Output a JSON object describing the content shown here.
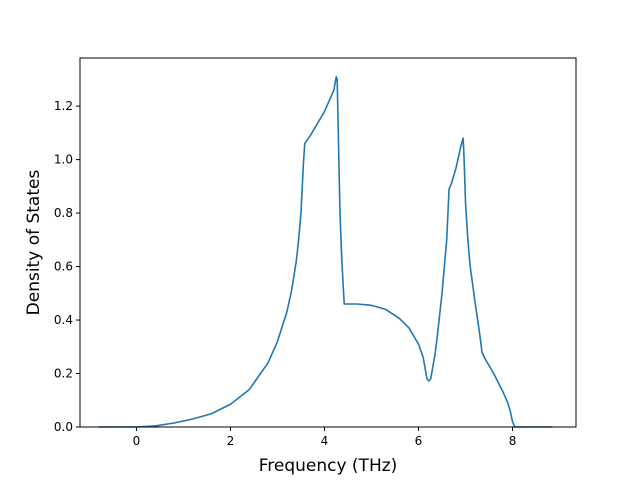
{
  "chart_data": {
    "type": "line",
    "title": "",
    "xlabel": "Frequency (THz)",
    "ylabel": "Density of States",
    "xlim": [
      -1.2,
      9.35
    ],
    "ylim": [
      0,
      1.38
    ],
    "xticks": [
      0,
      2,
      4,
      6,
      8
    ],
    "xtick_labels": [
      "0",
      "2",
      "4",
      "6",
      "8"
    ],
    "yticks": [
      0.0,
      0.2,
      0.4,
      0.6,
      0.8,
      1.0,
      1.2
    ],
    "ytick_labels": [
      "0.0",
      "0.2",
      "0.4",
      "0.6",
      "0.8",
      "1.0",
      "1.2"
    ],
    "grid": false,
    "legend": false,
    "series": [
      {
        "color": "#1f77b4",
        "x": [
          -0.8,
          -0.4,
          0.0,
          0.4,
          0.8,
          1.2,
          1.6,
          2.0,
          2.4,
          2.8,
          3.0,
          3.2,
          3.3,
          3.4,
          3.45,
          3.5,
          3.55,
          3.58,
          3.62,
          3.7,
          3.8,
          3.9,
          4.0,
          4.1,
          4.2,
          4.25,
          4.27,
          4.3,
          4.33,
          4.37,
          4.42,
          4.5,
          4.7,
          5.0,
          5.3,
          5.6,
          5.8,
          6.0,
          6.1,
          6.15,
          6.18,
          6.22,
          6.26,
          6.3,
          6.35,
          6.4,
          6.5,
          6.6,
          6.65,
          6.7,
          6.75,
          6.8,
          6.85,
          6.9,
          6.95,
          6.97,
          7.0,
          7.05,
          7.1,
          7.2,
          7.3,
          7.35,
          7.4,
          7.6,
          7.8,
          7.9,
          7.95,
          8.0,
          8.05,
          8.1,
          8.5,
          8.85
        ],
        "y": [
          0.0,
          0.0,
          0.0,
          0.004,
          0.015,
          0.03,
          0.05,
          0.085,
          0.14,
          0.24,
          0.32,
          0.43,
          0.51,
          0.62,
          0.7,
          0.8,
          0.98,
          1.06,
          1.07,
          1.09,
          1.12,
          1.15,
          1.18,
          1.22,
          1.26,
          1.31,
          1.3,
          1.05,
          0.8,
          0.62,
          0.46,
          0.46,
          0.46,
          0.455,
          0.44,
          0.405,
          0.37,
          0.31,
          0.26,
          0.21,
          0.18,
          0.172,
          0.18,
          0.22,
          0.27,
          0.34,
          0.5,
          0.7,
          0.89,
          0.91,
          0.94,
          0.97,
          1.01,
          1.05,
          1.08,
          1.0,
          0.84,
          0.7,
          0.6,
          0.47,
          0.35,
          0.28,
          0.26,
          0.2,
          0.13,
          0.09,
          0.06,
          0.02,
          0.0,
          0.0,
          0.0,
          0.0
        ]
      }
    ]
  }
}
